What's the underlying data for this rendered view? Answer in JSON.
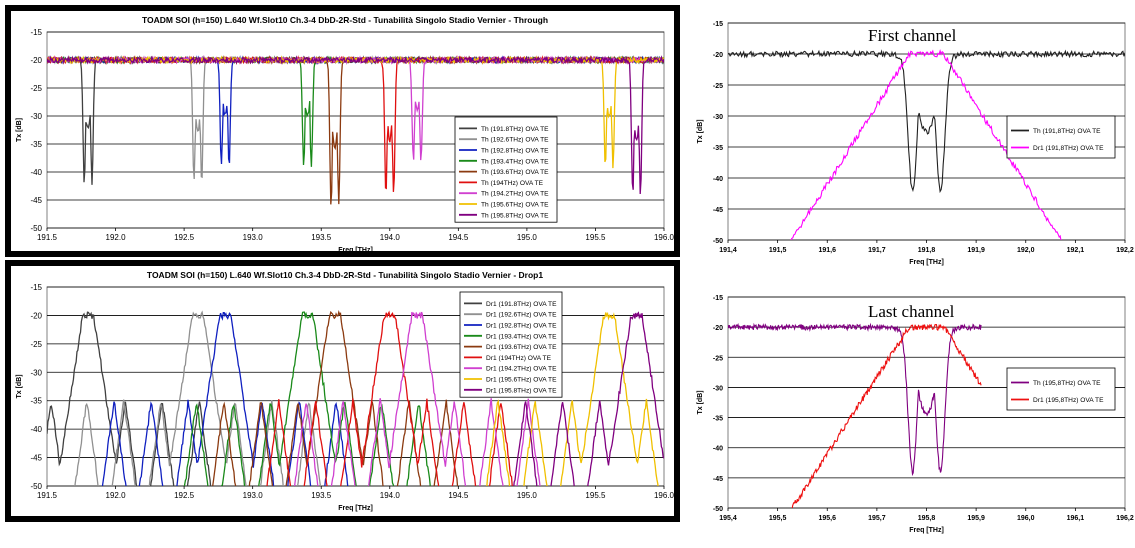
{
  "chart_data": [
    {
      "id": "through",
      "type": "line",
      "title": "TOADM SOI (h=150) L.640 Wf.Slot10 Ch.3-4 DbD-2R-Std - Tunabilità Singolo Stadio Vernier - Through",
      "xlabel": "Freq [THz]",
      "ylabel": "Tx [dB]",
      "xlim": [
        191.5,
        196.0
      ],
      "ylim": [
        -50,
        -15
      ],
      "xticks": [
        "191.5",
        "192.0",
        "192.5",
        "193.0",
        "193.5",
        "194.0",
        "194.5",
        "195.0",
        "195.5",
        "196.0"
      ],
      "yticks": [
        "-15",
        "-20",
        "-25",
        "-30",
        "-35",
        "-40",
        "-45",
        "-50"
      ],
      "legend_position": "center-right",
      "grid": true,
      "kind": "through",
      "baseline": -20,
      "series": [
        {
          "name": "Th (191.8THz) OVA TE",
          "color": "#404040",
          "center": 191.8,
          "min": -42
        },
        {
          "name": "Th (192.6THz) OVA TE",
          "color": "#909090",
          "center": 192.6,
          "min": -42
        },
        {
          "name": "Th (192.8THz) OVA TE",
          "color": "#1020c0",
          "center": 192.8,
          "min": -39
        },
        {
          "name": "Th (193.4THz) OVA TE",
          "color": "#1a8a1a",
          "center": 193.4,
          "min": -39
        },
        {
          "name": "Th (193.6THz) OVA TE",
          "color": "#8b3a10",
          "center": 193.6,
          "min": -46
        },
        {
          "name": "Th (194THz) OVA TE",
          "color": "#e01010",
          "center": 194.0,
          "min": -44
        },
        {
          "name": "Th (194.2THz) OVA TE",
          "color": "#d040d0",
          "center": 194.2,
          "min": -38
        },
        {
          "name": "Th (195.6THz) OVA TE",
          "color": "#f0c000",
          "center": 195.6,
          "min": -39
        },
        {
          "name": "Th (195.8THz) OVA TE",
          "color": "#800080",
          "center": 195.8,
          "min": -44
        }
      ]
    },
    {
      "id": "drop",
      "type": "line",
      "title": "TOADM SOI (h=150) L.640 Wf.Slot10 Ch.3-4 DbD-2R-Std - Tunabilità Singolo Stadio Vernier - Drop1",
      "xlabel": "Freq [THz]",
      "ylabel": "Tx [dB]",
      "xlim": [
        191.5,
        196.0
      ],
      "ylim": [
        -50,
        -15
      ],
      "xticks": [
        "191.5",
        "192.0",
        "192.5",
        "193.0",
        "193.5",
        "194.0",
        "194.5",
        "195.0",
        "195.5",
        "196.0"
      ],
      "yticks": [
        "-15",
        "-20",
        "-25",
        "-30",
        "-35",
        "-40",
        "-45",
        "-50"
      ],
      "legend_position": "top-right",
      "grid": true,
      "kind": "drop",
      "series": [
        {
          "name": "Dr1 (191.8THz) OVA TE",
          "color": "#404040",
          "center": 191.8,
          "peak": -20
        },
        {
          "name": "Dr1 (192.6THz) OVA TE",
          "color": "#909090",
          "center": 192.6,
          "peak": -20
        },
        {
          "name": "Dr1 (192.8THz) OVA TE",
          "color": "#1020c0",
          "center": 192.8,
          "peak": -20
        },
        {
          "name": "Dr1 (193.4THz) OVA TE",
          "color": "#1a8a1a",
          "center": 193.4,
          "peak": -20
        },
        {
          "name": "Dr1 (193.6THz) OVA TE",
          "color": "#8b3a10",
          "center": 193.6,
          "peak": -20
        },
        {
          "name": "Dr1 (194THz) OVA TE",
          "color": "#e01010",
          "center": 194.0,
          "peak": -20
        },
        {
          "name": "Dr1 (194.2THz) OVA TE",
          "color": "#d040d0",
          "center": 194.2,
          "peak": -20
        },
        {
          "name": "Dr1 (195.6THz) OVA TE",
          "color": "#f0c000",
          "center": 195.6,
          "peak": -20
        },
        {
          "name": "Dr1 (195.8THz) OVA TE",
          "color": "#800080",
          "center": 195.8,
          "peak": -20
        }
      ]
    },
    {
      "id": "first",
      "type": "line",
      "title": "First channel",
      "xlabel": "Freq [THz]",
      "ylabel": "Tx [dB]",
      "xlim": [
        191.4,
        192.2
      ],
      "ylim": [
        -50,
        -15
      ],
      "xticks": [
        "191,4",
        "191,5",
        "191,6",
        "191,7",
        "191,8",
        "191,9",
        "192,0",
        "192,1",
        "192,2"
      ],
      "yticks": [
        "-15",
        "-20",
        "-25",
        "-30",
        "-35",
        "-40",
        "-45",
        "-50"
      ],
      "legend_position": "right",
      "grid": true,
      "kind": "zoom",
      "series": [
        {
          "name": "Th (191,8THz) OVA TE",
          "color": "#202020",
          "role": "through",
          "center": 191.8,
          "min": -42
        },
        {
          "name": "Dr1 (191,8THz) OVA TE",
          "color": "#ff00ff",
          "role": "drop",
          "center": 191.8,
          "peak": -20
        }
      ]
    },
    {
      "id": "last",
      "type": "line",
      "title": "Last channel",
      "xlabel": "Freq [THz]",
      "ylabel": "Tx [dB]",
      "xlim": [
        195.4,
        196.2
      ],
      "ylim": [
        -50,
        -15
      ],
      "xticks": [
        "195,4",
        "195,5",
        "195,6",
        "195,7",
        "195,8",
        "195,9",
        "196,0",
        "196,1",
        "196,2"
      ],
      "yticks": [
        "-15",
        "-20",
        "-25",
        "-30",
        "-35",
        "-40",
        "-45",
        "-50"
      ],
      "legend_position": "right",
      "grid": true,
      "kind": "zoom",
      "xend": 195.91,
      "series": [
        {
          "name": "Th (195,8THz) OVA TE",
          "color": "#800080",
          "role": "through",
          "center": 195.8,
          "min": -44
        },
        {
          "name": "Dr1 (195,8THz) OVA TE",
          "color": "#ee1010",
          "role": "drop",
          "center": 195.8,
          "peak": -20
        }
      ]
    }
  ]
}
